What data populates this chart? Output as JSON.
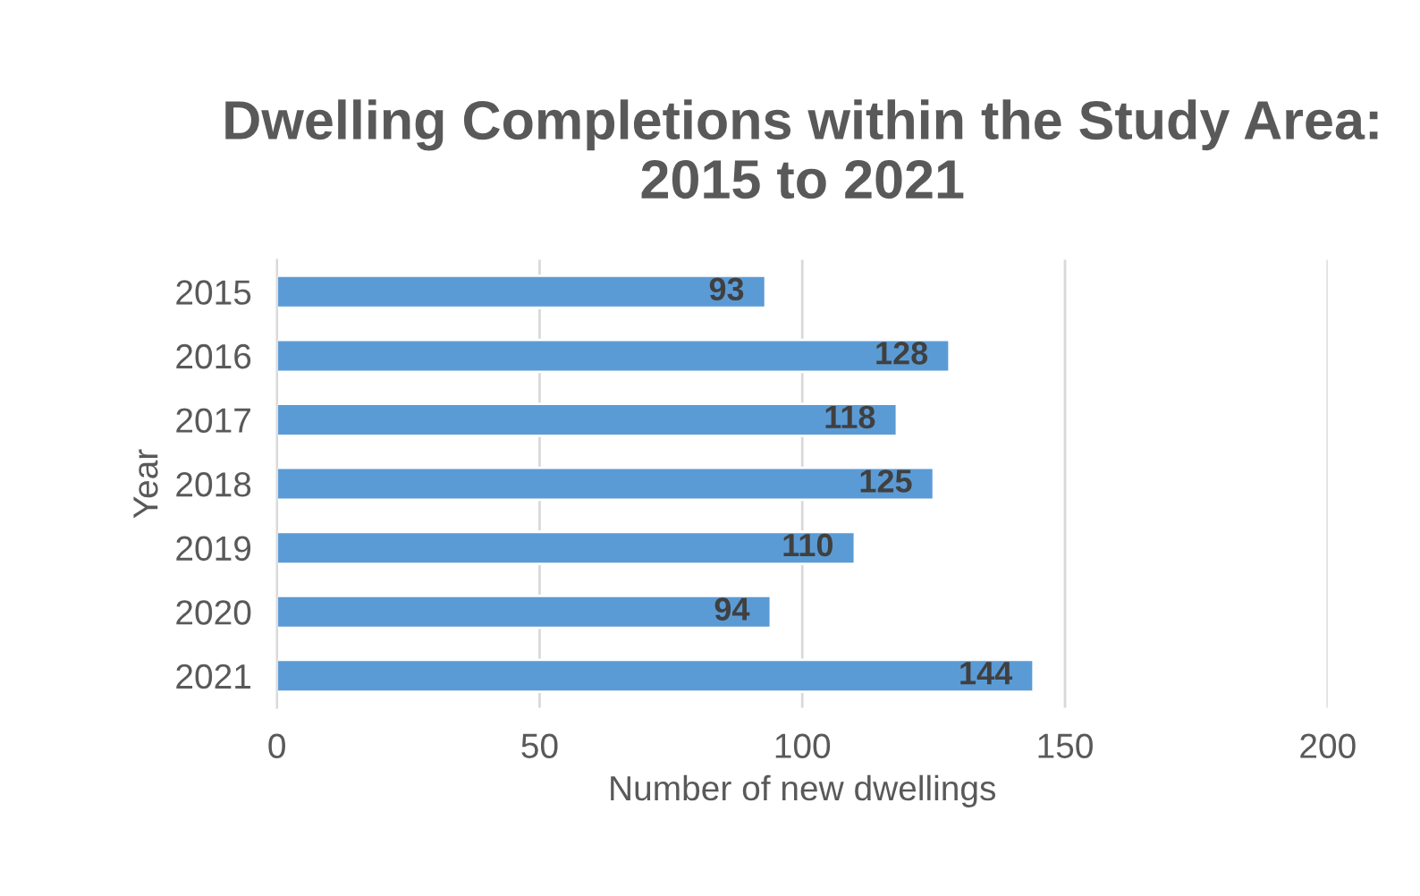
{
  "chart_data": {
    "type": "bar",
    "orientation": "horizontal",
    "title": "Dwelling Completions within the Study Area: 2015 to 2021",
    "xlabel": "Number of new dwellings",
    "ylabel": "Year",
    "categories": [
      "2015",
      "2016",
      "2017",
      "2018",
      "2019",
      "2020",
      "2021"
    ],
    "values": [
      93,
      128,
      118,
      125,
      110,
      94,
      144
    ],
    "color": "#5b9bd5",
    "xlim": [
      0,
      200
    ],
    "xticks": [
      0,
      50,
      100,
      150,
      200
    ],
    "grid": "x",
    "data_labels": true
  }
}
